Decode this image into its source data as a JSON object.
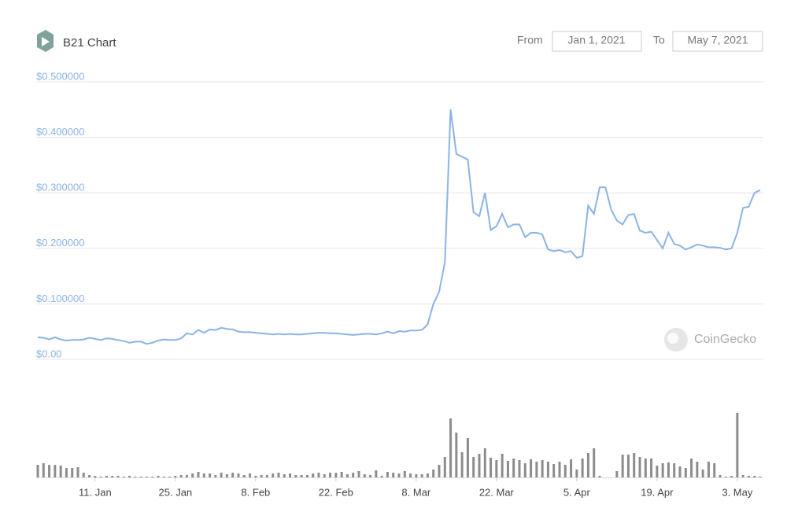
{
  "controls": {
    "from_label": "From",
    "from_date": "Jan 1, 2021",
    "to_label": "To",
    "to_date": "May 7, 2021"
  },
  "watermark": "CoinGecko",
  "chart_data": [
    {
      "type": "line",
      "title": "B21 Chart",
      "color": "#8ab4e5",
      "grid": true,
      "ylim": [
        0,
        0.5
      ],
      "yticks": [
        {
          "value": 0.5,
          "label": "$0.500000"
        },
        {
          "value": 0.4,
          "label": "$0.400000"
        },
        {
          "value": 0.3,
          "label": "$0.300000"
        },
        {
          "value": 0.2,
          "label": "$0.200000"
        },
        {
          "value": 0.1,
          "label": "$0.100000"
        },
        {
          "value": 0,
          "label": "$0.00"
        }
      ],
      "values": [
        0.04,
        0.039,
        0.036,
        0.04,
        0.036,
        0.034,
        0.035,
        0.035,
        0.036,
        0.039,
        0.037,
        0.035,
        0.038,
        0.037,
        0.035,
        0.033,
        0.03,
        0.032,
        0.032,
        0.028,
        0.03,
        0.034,
        0.036,
        0.035,
        0.035,
        0.038,
        0.047,
        0.045,
        0.053,
        0.048,
        0.054,
        0.053,
        0.057,
        0.055,
        0.054,
        0.05,
        0.049,
        0.049,
        0.048,
        0.047,
        0.046,
        0.045,
        0.046,
        0.045,
        0.046,
        0.045,
        0.045,
        0.046,
        0.047,
        0.048,
        0.048,
        0.047,
        0.047,
        0.046,
        0.045,
        0.044,
        0.045,
        0.046,
        0.046,
        0.045,
        0.047,
        0.05,
        0.047,
        0.051,
        0.05,
        0.052,
        0.052,
        0.053,
        0.063,
        0.1,
        0.122,
        0.175,
        0.45,
        0.37,
        0.365,
        0.36,
        0.265,
        0.258,
        0.3,
        0.233,
        0.24,
        0.262,
        0.238,
        0.243,
        0.243,
        0.22,
        0.228,
        0.228,
        0.225,
        0.198,
        0.195,
        0.197,
        0.193,
        0.195,
        0.183,
        0.186,
        0.277,
        0.262,
        0.31,
        0.31,
        0.27,
        0.25,
        0.243,
        0.26,
        0.262,
        0.232,
        0.228,
        0.23,
        0.215,
        0.2,
        0.228,
        0.208,
        0.205,
        0.198,
        0.202,
        0.207,
        0.205,
        0.202,
        0.202,
        0.201,
        0.198,
        0.2,
        0.228,
        0.273,
        0.275,
        0.3,
        0.305
      ]
    },
    {
      "type": "bar",
      "color": "#8c8c8c",
      "categories": [
        null,
        null,
        null,
        null,
        null,
        null,
        null,
        null,
        null,
        null,
        "11. Jan",
        null,
        null,
        null,
        null,
        null,
        null,
        null,
        null,
        null,
        null,
        null,
        null,
        null,
        "25. Jan",
        null,
        null,
        null,
        null,
        null,
        null,
        null,
        null,
        null,
        null,
        null,
        null,
        null,
        "8. Feb",
        null,
        null,
        null,
        null,
        null,
        null,
        null,
        null,
        null,
        null,
        null,
        null,
        null,
        "22. Feb",
        null,
        null,
        null,
        null,
        null,
        null,
        null,
        null,
        null,
        null,
        null,
        null,
        null,
        "8. Mar",
        null,
        null,
        null,
        null,
        null,
        null,
        null,
        null,
        null,
        null,
        null,
        null,
        null,
        "22. Mar",
        null,
        null,
        null,
        null,
        null,
        null,
        null,
        null,
        null,
        null,
        null,
        null,
        null,
        "5. Apr",
        null,
        null,
        null,
        null,
        null,
        null,
        null,
        null,
        null,
        null,
        null,
        null,
        null,
        "19. Apr",
        null,
        null,
        null,
        null,
        null,
        null,
        null,
        null,
        null,
        null,
        null,
        null,
        null,
        "3. May",
        null,
        null,
        null,
        null
      ],
      "values": [
        16,
        18,
        16,
        16,
        15,
        12,
        12,
        13,
        6,
        3,
        2,
        1,
        2,
        2,
        2,
        1,
        2,
        1,
        1,
        1,
        1,
        2,
        1,
        1,
        2,
        3,
        3,
        5,
        7,
        5,
        5,
        3,
        6,
        4,
        6,
        5,
        3,
        5,
        2,
        3,
        3,
        5,
        6,
        4,
        5,
        3,
        3,
        3,
        5,
        6,
        4,
        6,
        6,
        7,
        4,
        6,
        8,
        4,
        3,
        9,
        2,
        7,
        6,
        5,
        8,
        5,
        4,
        4,
        5,
        10,
        16,
        26,
        75,
        57,
        32,
        50,
        26,
        30,
        37,
        25,
        22,
        30,
        21,
        24,
        22,
        18,
        23,
        20,
        22,
        20,
        17,
        20,
        16,
        23,
        10,
        24,
        31,
        37,
        2,
        0,
        0,
        8,
        29,
        29,
        31,
        26,
        24,
        24,
        15,
        18,
        19,
        18,
        14,
        12,
        24,
        20,
        10,
        20,
        18,
        3,
        1,
        2,
        82,
        3,
        2,
        2,
        1
      ]
    }
  ]
}
